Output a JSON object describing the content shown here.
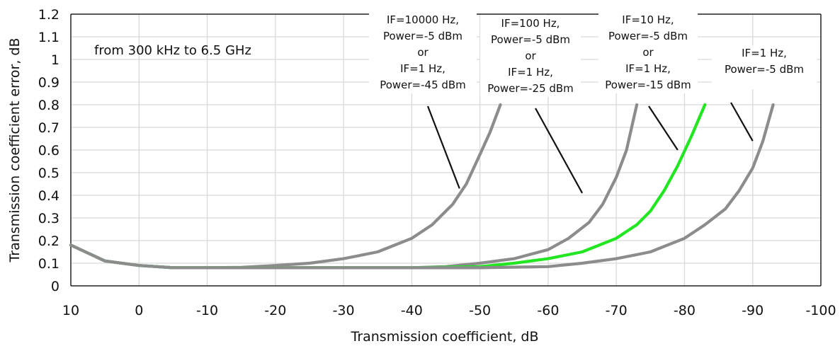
{
  "chart_data": {
    "type": "line",
    "xlabel": "Transmission coefficient, dB",
    "ylabel": "Transmission coefficient error, dB",
    "note": "from 300 kHz to 6.5 GHz",
    "xlim": [
      10,
      -100
    ],
    "ylim": [
      0,
      1.2
    ],
    "x_ticks": [
      10,
      0,
      -10,
      -20,
      -30,
      -40,
      -50,
      -60,
      -70,
      -80,
      -90,
      -100
    ],
    "x_tick_labels": [
      "10",
      "0",
      "-10",
      "-20",
      "-30",
      "-40",
      "-50",
      "-60",
      "-70",
      "-80",
      "-90",
      "-100"
    ],
    "y_ticks": [
      0,
      0.1,
      0.2,
      0.3,
      0.4,
      0.5,
      0.6,
      0.7,
      0.8,
      0.9,
      1,
      1.1,
      1.2
    ],
    "y_tick_labels": [
      "0",
      "0.1",
      "0.2",
      "0.3",
      "0.4",
      "0.5",
      "0.6",
      "0.7",
      "0.8",
      "0.9",
      "1",
      "1.1",
      "1.2"
    ],
    "grid": true,
    "colors": {
      "gray": "#8c8c8c",
      "green": "#22e622",
      "grid": "#d9d9d9",
      "axis": "#222222"
    },
    "series": [
      {
        "color": "#8c8c8c",
        "x": [
          10,
          5,
          0,
          -5,
          -10,
          -15,
          -20,
          -25,
          -30,
          -35,
          -40,
          -43,
          -46,
          -48,
          -50,
          -51.5,
          -53
        ],
        "y": [
          0.18,
          0.11,
          0.09,
          0.08,
          0.08,
          0.082,
          0.09,
          0.1,
          0.12,
          0.15,
          0.21,
          0.27,
          0.36,
          0.45,
          0.58,
          0.68,
          0.8
        ]
      },
      {
        "color": "#8c8c8c",
        "x": [
          10,
          5,
          0,
          -5,
          -10,
          -20,
          -30,
          -40,
          -45,
          -50,
          -55,
          -60,
          -63,
          -66,
          -68,
          -70,
          -71.5,
          -73
        ],
        "y": [
          0.18,
          0.11,
          0.09,
          0.08,
          0.08,
          0.08,
          0.08,
          0.08,
          0.085,
          0.1,
          0.12,
          0.16,
          0.21,
          0.28,
          0.36,
          0.48,
          0.6,
          0.8
        ]
      },
      {
        "color": "#22e622",
        "x": [
          10,
          5,
          0,
          -5,
          -10,
          -20,
          -30,
          -40,
          -50,
          -55,
          -60,
          -65,
          -70,
          -73,
          -75,
          -77,
          -79,
          -81,
          -83
        ],
        "y": [
          0.18,
          0.11,
          0.09,
          0.08,
          0.08,
          0.08,
          0.08,
          0.08,
          0.085,
          0.1,
          0.12,
          0.15,
          0.21,
          0.27,
          0.33,
          0.42,
          0.53,
          0.66,
          0.8
        ]
      },
      {
        "color": "#8c8c8c",
        "x": [
          10,
          5,
          0,
          -5,
          -10,
          -20,
          -30,
          -40,
          -50,
          -60,
          -65,
          -70,
          -75,
          -80,
          -83,
          -86,
          -88,
          -90,
          -91.5,
          -93
        ],
        "y": [
          0.18,
          0.11,
          0.09,
          0.08,
          0.08,
          0.08,
          0.08,
          0.08,
          0.08,
          0.085,
          0.1,
          0.12,
          0.15,
          0.21,
          0.27,
          0.34,
          0.42,
          0.52,
          0.64,
          0.8
        ]
      }
    ],
    "annotations": [
      {
        "lines": [
          "IF=10000 Hz,",
          "Power=-5 dBm",
          "or",
          "IF=1 Hz,",
          "Power=-45 dBm"
        ],
        "points_to": [
          -47,
          0.43
        ]
      },
      {
        "lines": [
          "IF=100 Hz,",
          "Power=-5 dBm",
          "or",
          "IF=1 Hz,",
          "Power=-25 dBm"
        ],
        "points_to": [
          -65,
          0.41
        ]
      },
      {
        "lines": [
          "IF=10 Hz,",
          "Power=-5 dBm",
          "or",
          "IF=1 Hz,",
          "Power=-15 dBm"
        ],
        "points_to": [
          -79,
          0.6
        ]
      },
      {
        "lines": [
          "IF=1 Hz,",
          "Power=-5 dBm"
        ],
        "points_to": [
          -90,
          0.64
        ]
      }
    ]
  }
}
